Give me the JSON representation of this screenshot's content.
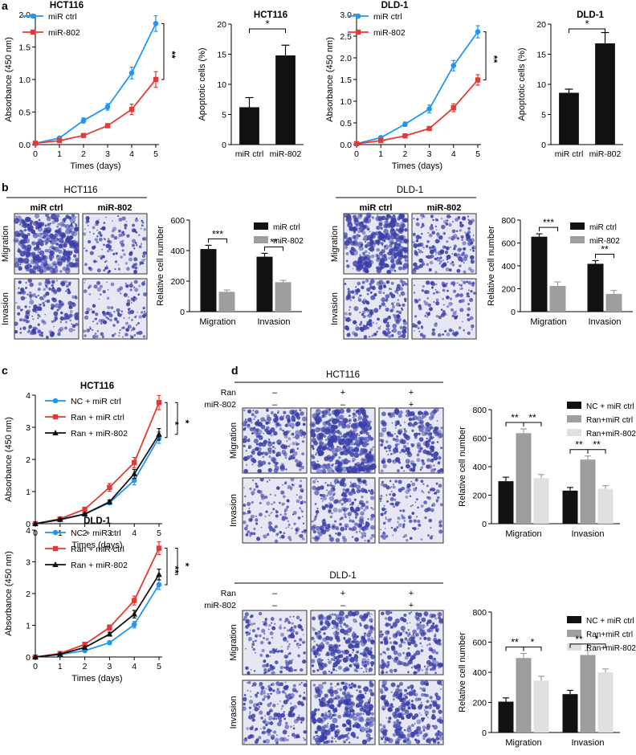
{
  "panel_letters": [
    "a",
    "b",
    "c",
    "d"
  ],
  "colors": {
    "blue": "#2196f3",
    "red": "#e53935",
    "black": "#111111",
    "gray": "#9e9e9e",
    "lightgray": "#e0e0e0",
    "stain": "#3a3fa8"
  },
  "chart_data": [
    {
      "id": "a1",
      "type": "line",
      "title": "HCT116",
      "xlabel": "Times (days)",
      "ylabel": "Absorbance (450 nm)",
      "x": [
        0,
        1,
        2,
        3,
        4,
        5
      ],
      "xlim": [
        0,
        5
      ],
      "ylim": [
        0,
        2.0
      ],
      "yticks": [
        "0.0",
        "0.5",
        "1.0",
        "1.5",
        "2.0"
      ],
      "series": [
        {
          "name": "miR ctrl",
          "color": "#2196f3",
          "marker": "circle",
          "values": [
            0.02,
            0.1,
            0.37,
            0.58,
            1.1,
            1.86
          ],
          "errors": [
            0.01,
            0.02,
            0.04,
            0.05,
            0.09,
            0.12
          ]
        },
        {
          "name": "miR-802",
          "color": "#e53935",
          "marker": "square",
          "values": [
            0.02,
            0.06,
            0.14,
            0.29,
            0.54,
            1.0
          ],
          "errors": [
            0.01,
            0.01,
            0.02,
            0.03,
            0.08,
            0.12
          ]
        }
      ],
      "significance": [
        {
          "label": "**"
        }
      ]
    },
    {
      "id": "a2",
      "type": "bar",
      "title": "HCT116",
      "ylabel": "Apoptotic cells (%)",
      "categories": [
        "miR ctrl",
        "miR-802"
      ],
      "values": [
        6.2,
        14.8
      ],
      "errors": [
        1.6,
        1.7
      ],
      "ylim": [
        0,
        20
      ],
      "yticks": [
        "0",
        "5",
        "10",
        "15",
        "20"
      ],
      "significance": [
        {
          "label": "*"
        }
      ]
    },
    {
      "id": "a3",
      "type": "line",
      "title": "DLD-1",
      "xlabel": "Times (days)",
      "ylabel": "Absorbance (450 nm)",
      "x": [
        0,
        1,
        2,
        3,
        4,
        5
      ],
      "xlim": [
        0,
        5
      ],
      "ylim": [
        0,
        3.0
      ],
      "yticks": [
        "0.0",
        "0.5",
        "1.0",
        "1.5",
        "2.0",
        "2.5",
        "3.0"
      ],
      "series": [
        {
          "name": "miR ctrl",
          "color": "#2196f3",
          "marker": "circle",
          "values": [
            0.02,
            0.16,
            0.47,
            0.82,
            1.82,
            2.6
          ],
          "errors": [
            0.01,
            0.02,
            0.05,
            0.09,
            0.12,
            0.14
          ]
        },
        {
          "name": "miR-802",
          "color": "#e53935",
          "marker": "square",
          "values": [
            0.02,
            0.09,
            0.2,
            0.37,
            0.85,
            1.49
          ],
          "errors": [
            0.01,
            0.01,
            0.03,
            0.04,
            0.09,
            0.12
          ]
        }
      ],
      "significance": [
        {
          "label": "**"
        }
      ]
    },
    {
      "id": "a4",
      "type": "bar",
      "title": "DLD-1",
      "ylabel": "Apoptotic cells (%)",
      "categories": [
        "miR ctrl",
        "miR-802"
      ],
      "values": [
        8.6,
        16.8
      ],
      "errors": [
        0.6,
        1.8
      ],
      "ylim": [
        0,
        20
      ],
      "yticks": [
        "0",
        "5",
        "10",
        "15",
        "20"
      ],
      "significance": [
        {
          "label": "*"
        }
      ]
    },
    {
      "id": "b1",
      "type": "bar",
      "ylabel": "Relative cell number",
      "categories": [
        "Migration",
        "Invasion"
      ],
      "ylim": [
        0,
        600
      ],
      "yticks": [
        "0",
        "200",
        "400",
        "600"
      ],
      "series": [
        {
          "name": "miR ctrl",
          "color": "#111111",
          "values": [
            410,
            360
          ],
          "errors": [
            25,
            22
          ]
        },
        {
          "name": "miR-802",
          "color": "#9e9e9e",
          "values": [
            130,
            193
          ],
          "errors": [
            12,
            12
          ]
        }
      ],
      "significance": [
        {
          "label": "***"
        },
        {
          "label": "**"
        }
      ]
    },
    {
      "id": "b2",
      "type": "bar",
      "ylabel": "Relative cell number",
      "categories": [
        "Migration",
        "Invasion"
      ],
      "ylim": [
        0,
        800
      ],
      "yticks": [
        "0",
        "200",
        "400",
        "600",
        "800"
      ],
      "series": [
        {
          "name": "miR ctrl",
          "color": "#111111",
          "values": [
            655,
            418
          ],
          "errors": [
            25,
            28
          ]
        },
        {
          "name": "miR-802",
          "color": "#9e9e9e",
          "values": [
            225,
            155
          ],
          "errors": [
            35,
            30
          ]
        }
      ],
      "significance": [
        {
          "label": "***"
        },
        {
          "label": "**"
        }
      ]
    },
    {
      "id": "c1",
      "type": "line",
      "title": "HCT116",
      "xlabel": "Times (days)",
      "ylabel": "Absorbance (450 nm)",
      "x": [
        0,
        1,
        2,
        3,
        4,
        5
      ],
      "xlim": [
        0,
        5
      ],
      "ylim": [
        0,
        4
      ],
      "yticks": [
        "0",
        "1",
        "2",
        "3",
        "4"
      ],
      "series": [
        {
          "name": "NC + miR ctrl",
          "color": "#2196f3",
          "marker": "circle",
          "values": [
            0.0,
            0.12,
            0.3,
            0.65,
            1.35,
            2.68
          ],
          "errors": [
            0.01,
            0.03,
            0.04,
            0.06,
            0.14,
            0.18
          ]
        },
        {
          "name": "Ran + miR ctrl",
          "color": "#e53935",
          "marker": "square",
          "values": [
            0.0,
            0.15,
            0.45,
            1.13,
            1.9,
            3.77
          ],
          "errors": [
            0.01,
            0.03,
            0.05,
            0.12,
            0.16,
            0.22
          ]
        },
        {
          "name": "Ran + miR-802",
          "color": "#111111",
          "marker": "triangle",
          "values": [
            0.0,
            0.13,
            0.3,
            0.68,
            1.55,
            2.78
          ],
          "errors": [
            0.01,
            0.03,
            0.04,
            0.06,
            0.14,
            0.18
          ]
        }
      ],
      "significance": [
        {
          "label": "*"
        },
        {
          "label": "*"
        }
      ]
    },
    {
      "id": "c2",
      "type": "line",
      "title": "DLD-1",
      "xlabel": "Times (days)",
      "ylabel": "Absorbance (450 nm)",
      "x": [
        0,
        1,
        2,
        3,
        4,
        5
      ],
      "xlim": [
        0,
        5
      ],
      "ylim": [
        0,
        4
      ],
      "yticks": [
        "0",
        "1",
        "2",
        "3",
        "4"
      ],
      "series": [
        {
          "name": "NC + miR ctrl",
          "color": "#2196f3",
          "marker": "circle",
          "values": [
            0.0,
            0.08,
            0.2,
            0.45,
            1.02,
            2.28
          ],
          "errors": [
            0.01,
            0.02,
            0.04,
            0.05,
            0.1,
            0.15
          ]
        },
        {
          "name": "Ran + miR ctrl",
          "color": "#e53935",
          "marker": "square",
          "values": [
            0.0,
            0.11,
            0.4,
            0.93,
            1.78,
            3.43
          ],
          "errors": [
            0.01,
            0.03,
            0.05,
            0.08,
            0.14,
            0.2
          ]
        },
        {
          "name": "Ran + miR-802",
          "color": "#111111",
          "marker": "triangle",
          "values": [
            0.0,
            0.09,
            0.3,
            0.72,
            1.35,
            2.6
          ],
          "errors": [
            0.01,
            0.02,
            0.04,
            0.06,
            0.12,
            0.17
          ]
        }
      ],
      "significance": [
        {
          "label": "**"
        },
        {
          "label": "*"
        }
      ]
    },
    {
      "id": "d1",
      "type": "bar",
      "ylabel": "Relative cell number",
      "categories": [
        "Migration",
        "Invasion"
      ],
      "ylim": [
        0,
        800
      ],
      "yticks": [
        "0",
        "200",
        "400",
        "600",
        "800"
      ],
      "series": [
        {
          "name": "NC + miR ctrl",
          "color": "#111111",
          "values": [
            298,
            232
          ],
          "errors": [
            28,
            22
          ]
        },
        {
          "name": "Ran+miR ctrl",
          "color": "#9e9e9e",
          "values": [
            635,
            450
          ],
          "errors": [
            30,
            25
          ]
        },
        {
          "name": "Ran+miR-802",
          "color": "#e0e0e0",
          "values": [
            320,
            245
          ],
          "errors": [
            25,
            22
          ]
        }
      ],
      "significance": [
        {
          "label": "**"
        },
        {
          "label": "**"
        },
        {
          "label": "**"
        },
        {
          "label": "**"
        }
      ]
    },
    {
      "id": "d2",
      "type": "bar",
      "ylabel": "Relative cell number",
      "categories": [
        "Migration",
        "Invasion"
      ],
      "ylim": [
        0,
        800
      ],
      "yticks": [
        "0",
        "200",
        "400",
        "600",
        "800"
      ],
      "series": [
        {
          "name": "NC + miR ctrl",
          "color": "#111111",
          "values": [
            205,
            255
          ],
          "errors": [
            25,
            25
          ]
        },
        {
          "name": "Ran+miR ctrl",
          "color": "#9e9e9e",
          "values": [
            495,
            515
          ],
          "errors": [
            30,
            30
          ]
        },
        {
          "name": "Ran+miR-802",
          "color": "#e0e0e0",
          "values": [
            345,
            400
          ],
          "errors": [
            28,
            22
          ]
        }
      ],
      "significance": [
        {
          "label": "**"
        },
        {
          "label": "*"
        },
        {
          "label": "**"
        },
        {
          "label": "*"
        }
      ]
    }
  ],
  "image_grids": [
    {
      "id": "b-hct",
      "title": "HCT116",
      "columns": [
        "miR ctrl",
        "miR-802"
      ],
      "rows": [
        "Migration",
        "Invasion"
      ],
      "density": [
        [
          0.85,
          0.3
        ],
        [
          0.45,
          0.3
        ]
      ]
    },
    {
      "id": "b-dld",
      "title": "DLD-1",
      "columns": [
        "miR ctrl",
        "miR-802"
      ],
      "rows": [
        "Migration",
        "Invasion"
      ],
      "density": [
        [
          0.85,
          0.45
        ],
        [
          0.5,
          0.3
        ]
      ]
    },
    {
      "id": "d-hct",
      "title": "HCT116",
      "conditions": [
        {
          "label": "Ran",
          "values": [
            "–",
            "+",
            "+"
          ]
        },
        {
          "label": "miR-802",
          "values": [
            "–",
            "–",
            "+"
          ]
        }
      ],
      "rows": [
        "Migration",
        "Invasion"
      ],
      "density": [
        [
          0.6,
          0.95,
          0.6
        ],
        [
          0.3,
          0.55,
          0.3
        ]
      ]
    },
    {
      "id": "d-dld",
      "title": "DLD-1",
      "conditions": [
        {
          "label": "Ran",
          "values": [
            "–",
            "+",
            "+"
          ]
        },
        {
          "label": "miR-802",
          "values": [
            "–",
            "–",
            "+"
          ]
        }
      ],
      "rows": [
        "Migration",
        "Invasion"
      ],
      "density": [
        [
          0.35,
          0.7,
          0.55
        ],
        [
          0.45,
          0.75,
          0.6
        ]
      ]
    }
  ]
}
